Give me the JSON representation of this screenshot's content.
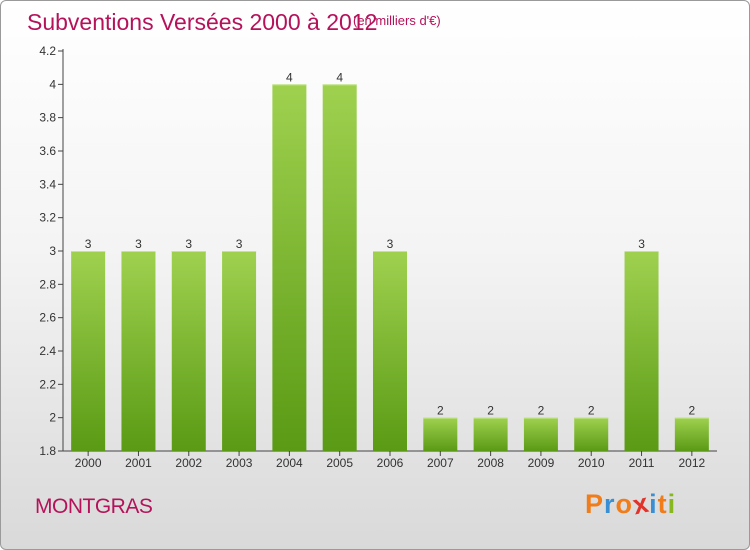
{
  "title": "Subventions Versées 2000 à 2012",
  "subtitle": "(en milliers d'€)",
  "place": "MONTGRAS",
  "logo": {
    "letters": [
      "P",
      "r",
      "o",
      "x",
      "i",
      "t",
      "i"
    ],
    "colors": [
      "#f07d1a",
      "#3a8fd4",
      "#f07d1a",
      "#e2332a",
      "#3a8fd4",
      "#f07d1a",
      "#88b820"
    ]
  },
  "colors": {
    "bar_light": "#9fd14f",
    "bar_dark": "#5a9a14",
    "accent": "#b5125a"
  },
  "chart_data": {
    "type": "bar",
    "categories": [
      "2000",
      "2001",
      "2002",
      "2003",
      "2004",
      "2005",
      "2006",
      "2007",
      "2008",
      "2009",
      "2010",
      "2011",
      "2012"
    ],
    "values": [
      3,
      3,
      3,
      3,
      4,
      4,
      3,
      2,
      2,
      2,
      2,
      3,
      2
    ],
    "ylim": [
      1.8,
      4.2
    ],
    "yticks": [
      "1.8",
      "2",
      "2.2",
      "2.4",
      "2.6",
      "2.8",
      "3",
      "3.2",
      "3.4",
      "3.6",
      "3.8",
      "4",
      "4.2"
    ],
    "grid": false,
    "legend": "none"
  }
}
